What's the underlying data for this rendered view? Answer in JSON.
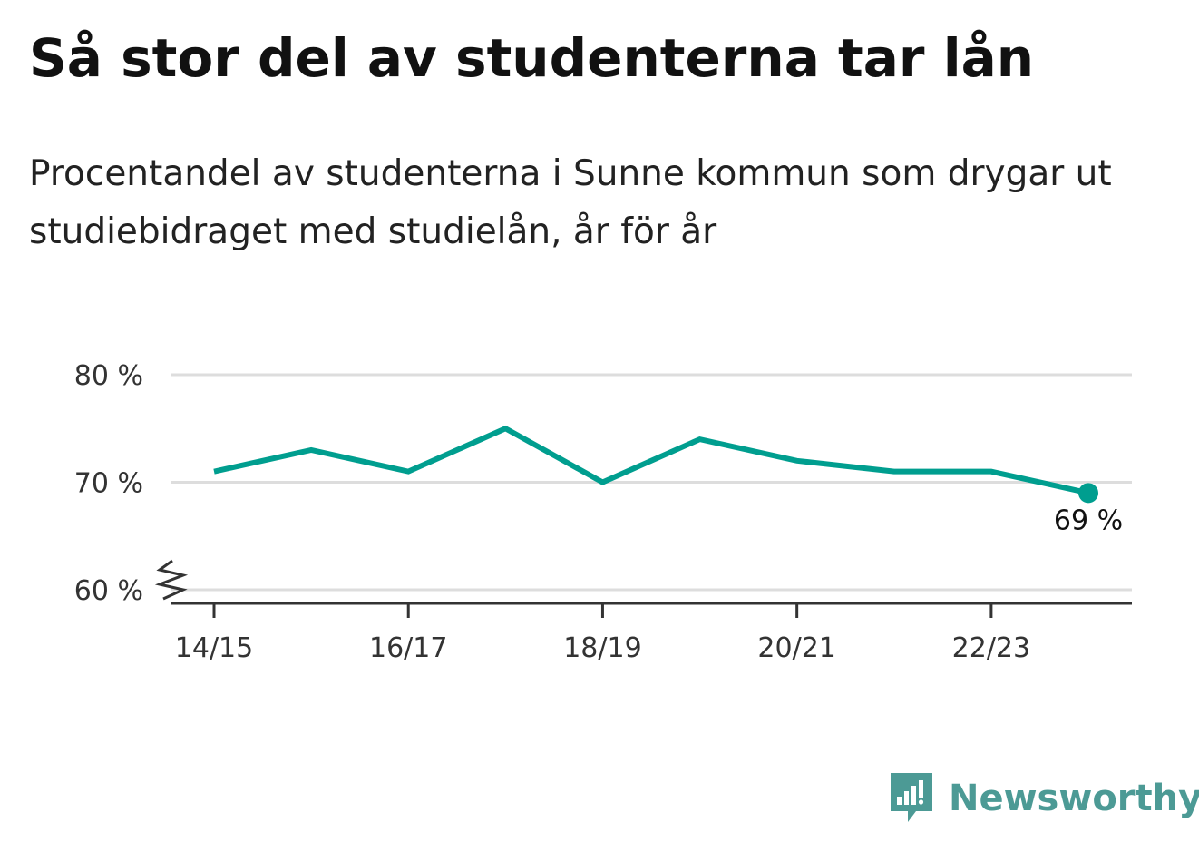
{
  "header": {
    "title": "Så stor del av studenterna tar lån",
    "subtitle": "Procentandel av studenterna i Sunne kommun som drygar ut studiebidraget med studielån, år för år"
  },
  "branding": {
    "name": "Newsworthy",
    "icon": "newsworthy-logo-icon",
    "color": "#4c9a95"
  },
  "colors": {
    "line": "#009e8f",
    "grid": "#dddddd",
    "axis": "#333333"
  },
  "chart_data": {
    "type": "line",
    "x": [
      "14/15",
      "15/16",
      "16/17",
      "17/18",
      "18/19",
      "19/20",
      "20/21",
      "21/22",
      "22/23",
      "23/24"
    ],
    "x_tick_labels": [
      "14/15",
      "16/17",
      "18/19",
      "20/21",
      "22/23"
    ],
    "series": [
      {
        "values": [
          71,
          73,
          71,
          75,
          70,
          74,
          72,
          71,
          71,
          69
        ]
      }
    ],
    "ylim": [
      60,
      80
    ],
    "y_tick_labels": [
      "60 %",
      "70 %",
      "80 %"
    ],
    "y_ticks": [
      60,
      70,
      80
    ],
    "y_axis_break": true,
    "grid": true,
    "annotations": [
      {
        "x": "23/24",
        "value": 69,
        "label": "69 %"
      }
    ],
    "xlabel": "",
    "ylabel": ""
  }
}
